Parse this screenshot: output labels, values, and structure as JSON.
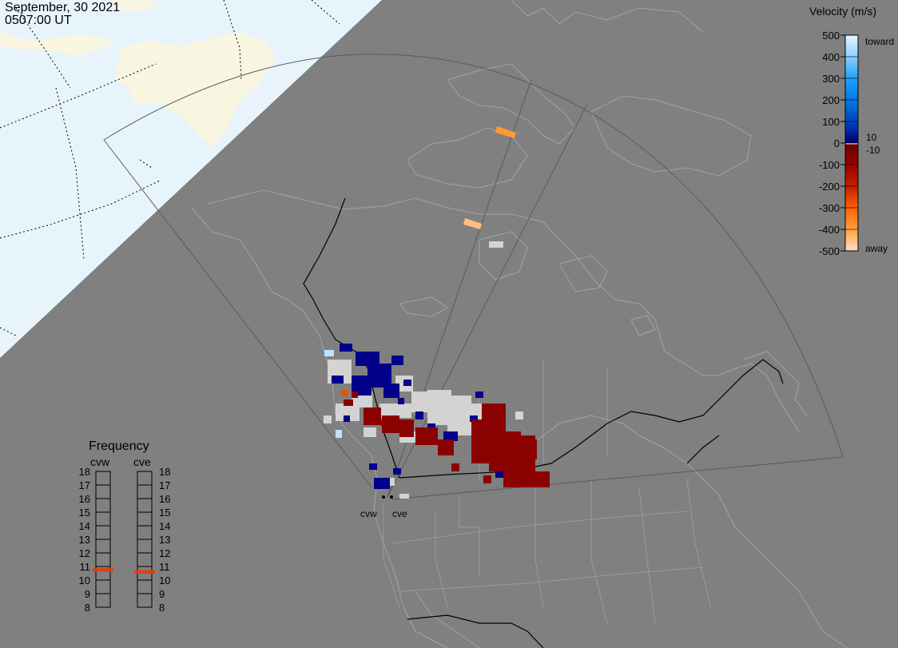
{
  "header": {
    "date": "September, 30 2021",
    "time": "0507:00 UT"
  },
  "colors": {
    "background": "#808080",
    "daylight_ocean": "#e8f4fc",
    "daylight_land": "#f8f5e0",
    "toward_strong": "#bfe3ff",
    "toward": "#0050c8",
    "toward_weak": "#00008b",
    "ground_scatter": "#d3d3d3",
    "away_weak": "#8b0000",
    "away": "#e8500a",
    "away_strong": "#ffd0a0",
    "freq_marker": "#e0400a"
  },
  "velocity_scale": {
    "title": "Velocity (m/s)",
    "tick_labels": [
      "500",
      "400",
      "300",
      "200",
      "100",
      "0",
      "-100",
      "-200",
      "-300",
      "-400",
      "-500"
    ],
    "annotations": {
      "toward": "toward",
      "away": "away",
      "pos_threshold": "10",
      "neg_threshold": "-10"
    }
  },
  "frequency": {
    "title": "Frequency",
    "radars": [
      "cvw",
      "cve"
    ],
    "ticks": [
      "18",
      "17",
      "16",
      "15",
      "14",
      "13",
      "12",
      "11",
      "10",
      "9",
      "8"
    ],
    "cvw_mhz": 10.75,
    "cve_mhz": 10.6
  },
  "radars": [
    {
      "name": "cvw"
    },
    {
      "name": "cve"
    }
  ],
  "map_features": {
    "fov": "shown",
    "terminator": "shown",
    "grid": "dotted lat/lon in daylight region",
    "echo_classes": [
      "toward",
      "away",
      "ground_scatter"
    ]
  }
}
